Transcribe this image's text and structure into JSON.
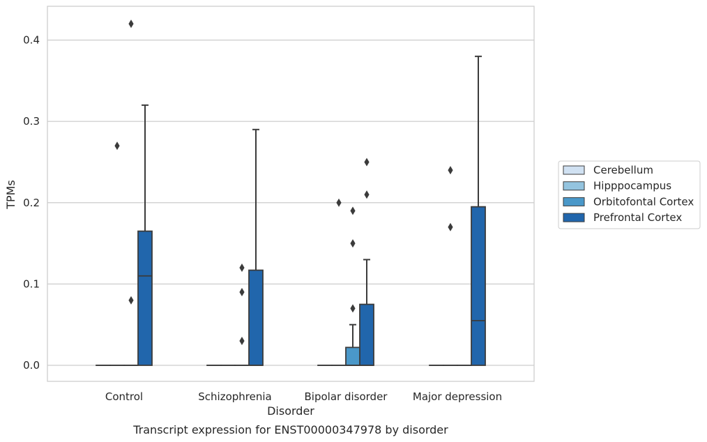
{
  "chart_data": {
    "type": "box",
    "title": "",
    "caption": "Transcript expression for ENST00000347978 by disorder",
    "xlabel": "Disorder",
    "ylabel": "TPMs",
    "ylim": [
      -0.02,
      0.44
    ],
    "yticks": [
      0.0,
      0.1,
      0.2,
      0.3,
      0.4
    ],
    "ytick_labels": [
      "0.0",
      "0.1",
      "0.2",
      "0.3",
      "0.4"
    ],
    "categories": [
      "Control",
      "Schizophrenia",
      "Bipolar disorder",
      "Major depression"
    ],
    "grid": "horizontal",
    "legend_position": "right",
    "series": [
      {
        "name": "Cerebellum",
        "color": "#d0e1f2",
        "boxes": [
          {
            "q1": 0,
            "median": 0,
            "q3": 0,
            "whisker_low": 0,
            "whisker_high": 0,
            "outliers": []
          },
          {
            "q1": 0,
            "median": 0,
            "q3": 0,
            "whisker_low": 0,
            "whisker_high": 0,
            "outliers": []
          },
          {
            "q1": 0,
            "median": 0,
            "q3": 0,
            "whisker_low": 0,
            "whisker_high": 0,
            "outliers": []
          },
          {
            "q1": 0,
            "median": 0,
            "q3": 0,
            "whisker_low": 0,
            "whisker_high": 0,
            "outliers": []
          }
        ]
      },
      {
        "name": "Hipppocampus",
        "color": "#94c4df",
        "boxes": [
          {
            "q1": 0,
            "median": 0,
            "q3": 0,
            "whisker_low": 0,
            "whisker_high": 0,
            "outliers": [
              0.27
            ]
          },
          {
            "q1": 0,
            "median": 0,
            "q3": 0,
            "whisker_low": 0,
            "whisker_high": 0,
            "outliers": []
          },
          {
            "q1": 0,
            "median": 0,
            "q3": 0,
            "whisker_low": 0,
            "whisker_high": 0,
            "outliers": [
              0.2
            ]
          },
          {
            "q1": 0,
            "median": 0,
            "q3": 0,
            "whisker_low": 0,
            "whisker_high": 0,
            "outliers": [
              0.24,
              0.17
            ]
          }
        ]
      },
      {
        "name": "Orbitofontal Cortex",
        "color": "#4a98c9",
        "boxes": [
          {
            "q1": 0,
            "median": 0,
            "q3": 0,
            "whisker_low": 0,
            "whisker_high": 0,
            "outliers": [
              0.42,
              0.08
            ]
          },
          {
            "q1": 0,
            "median": 0,
            "q3": 0,
            "whisker_low": 0,
            "whisker_high": 0,
            "outliers": [
              0.12,
              0.09,
              0.03
            ]
          },
          {
            "q1": 0,
            "median": 0,
            "q3": 0,
            "whisker_low": 0,
            "whisker_high": 0,
            "outliers": [
              0.15
            ]
          },
          {
            "q1": 0,
            "median": 0,
            "q3": 0,
            "whisker_low": 0,
            "whisker_high": 0,
            "outliers": []
          }
        ]
      },
      {
        "name": "Prefrontal Cortex",
        "color": "#2166ac",
        "boxes": [
          {
            "q1": 0,
            "median": 0.11,
            "q3": 0.165,
            "whisker_low": 0,
            "whisker_high": 0.32,
            "outliers": []
          },
          {
            "q1": 0,
            "median": 0,
            "q3": 0.117,
            "whisker_low": 0,
            "whisker_high": 0.29,
            "outliers": []
          },
          {
            "q1": 0,
            "median": 0,
            "q3": 0.075,
            "whisker_low": 0,
            "whisker_high": 0.13,
            "outliers": [
              0.25,
              0.21
            ]
          },
          {
            "q1": 0,
            "median": 0.055,
            "q3": 0.195,
            "whisker_low": 0,
            "whisker_high": 0.38,
            "outliers": []
          }
        ]
      }
    ],
    "extra_boxes_note_series3_bipolar": {
      "q1": 0,
      "median": 0,
      "q3": 0.022,
      "whisker_low": 0,
      "whisker_high": 0.05,
      "outliers": [
        0.19,
        0.07
      ]
    }
  }
}
